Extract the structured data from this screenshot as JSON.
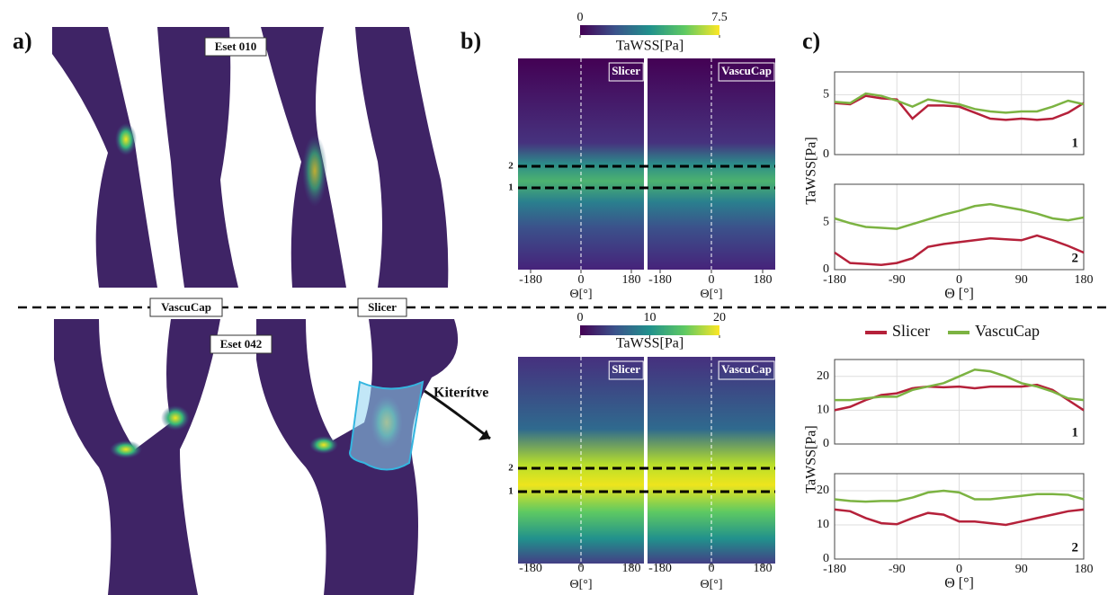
{
  "labels": {
    "a": "a)",
    "b": "b)",
    "c": "c)"
  },
  "renders": {
    "case_top": "Eset 010",
    "case_bottom": "Eset 042",
    "left": "VascuCap",
    "right": "Slicer",
    "arrow": "Kiterítve"
  },
  "heatmaps": [
    {
      "colorbar_label": "TaWSS[Pa]",
      "clim": [
        0,
        7.5
      ],
      "cticks": [
        0,
        7.5
      ],
      "panels": [
        "Slicer",
        "VascuCap"
      ],
      "xlim": [
        -180,
        180
      ],
      "xticks": [
        -180,
        0,
        180
      ],
      "xlabel": "Θ[°]",
      "lines": [
        "2",
        "1"
      ]
    },
    {
      "colorbar_label": "TaWSS[Pa]",
      "clim": [
        0,
        20
      ],
      "cticks": [
        0,
        10,
        20
      ],
      "panels": [
        "Slicer",
        "VascuCap"
      ],
      "xlim": [
        -180,
        180
      ],
      "xticks": [
        -180,
        0,
        180
      ],
      "xlabel": "Θ[°]",
      "lines": [
        "2",
        "1"
      ]
    }
  ],
  "chart_data": [
    {
      "type": "line",
      "ylabel": "TaWSS[Pa]",
      "annotation": "1",
      "x": [
        -180,
        -157.5,
        -135,
        -112.5,
        -90,
        -67.5,
        -45,
        -22.5,
        0,
        22.5,
        45,
        67.5,
        90,
        112.5,
        135,
        157.5,
        180
      ],
      "xlim": [
        -180,
        180
      ],
      "xticks": [
        -180,
        -90,
        0,
        90,
        180
      ],
      "ylim": [
        0,
        6.9
      ],
      "yticks": [
        0,
        5
      ],
      "grid": true,
      "series": [
        {
          "name": "Slicer",
          "color": "#b5213a",
          "values": [
            4.3,
            4.2,
            4.9,
            4.7,
            4.6,
            3.0,
            4.1,
            4.1,
            4.0,
            3.5,
            3.0,
            2.9,
            3.0,
            2.9,
            3.0,
            3.5,
            4.3
          ]
        },
        {
          "name": "VascuCap",
          "color": "#7cb342",
          "values": [
            4.4,
            4.3,
            5.1,
            4.9,
            4.5,
            4.0,
            4.6,
            4.4,
            4.2,
            3.8,
            3.6,
            3.5,
            3.6,
            3.6,
            4.0,
            4.5,
            4.2
          ]
        }
      ]
    },
    {
      "type": "line",
      "annotation": "2",
      "xlabel": "Θ [°]",
      "x": [
        -180,
        -157.5,
        -135,
        -112.5,
        -90,
        -67.5,
        -45,
        -22.5,
        0,
        22.5,
        45,
        67.5,
        90,
        112.5,
        135,
        157.5,
        180
      ],
      "xlim": [
        -180,
        180
      ],
      "xticks": [
        -180,
        -90,
        0,
        90,
        180
      ],
      "ylim": [
        0,
        9
      ],
      "yticks": [
        0,
        5
      ],
      "grid": true,
      "series": [
        {
          "name": "Slicer",
          "color": "#b5213a",
          "values": [
            1.8,
            0.7,
            0.6,
            0.5,
            0.7,
            1.2,
            2.4,
            2.7,
            2.9,
            3.1,
            3.3,
            3.2,
            3.1,
            3.6,
            3.1,
            2.5,
            1.8
          ]
        },
        {
          "name": "VascuCap",
          "color": "#7cb342",
          "values": [
            5.4,
            4.9,
            4.5,
            4.4,
            4.3,
            4.8,
            5.3,
            5.8,
            6.2,
            6.7,
            6.9,
            6.6,
            6.3,
            5.9,
            5.4,
            5.2,
            5.5
          ]
        }
      ]
    },
    {
      "type": "line",
      "ylabel": "TaWSS[Pa]",
      "annotation": "1",
      "x": [
        -180,
        -157.5,
        -135,
        -112.5,
        -90,
        -67.5,
        -45,
        -22.5,
        0,
        22.5,
        45,
        67.5,
        90,
        112.5,
        135,
        157.5,
        180
      ],
      "xlim": [
        -180,
        180
      ],
      "xticks": [
        -180,
        -90,
        0,
        90,
        180
      ],
      "ylim": [
        0,
        25
      ],
      "yticks": [
        0,
        10,
        20
      ],
      "grid": true,
      "series": [
        {
          "name": "Slicer",
          "color": "#b5213a",
          "values": [
            10,
            11,
            13,
            14.5,
            15,
            16.5,
            17,
            16.8,
            17,
            16.5,
            17,
            17,
            17,
            17.5,
            16,
            13,
            10
          ]
        },
        {
          "name": "VascuCap",
          "color": "#7cb342",
          "values": [
            13,
            13,
            13.5,
            14,
            14,
            16,
            17,
            18,
            20,
            22,
            21.5,
            20,
            18,
            17,
            15.5,
            13.5,
            13
          ]
        }
      ]
    },
    {
      "type": "line",
      "annotation": "2",
      "xlabel": "Θ [°]",
      "x": [
        -180,
        -157.5,
        -135,
        -112.5,
        -90,
        -67.5,
        -45,
        -22.5,
        0,
        22.5,
        45,
        67.5,
        90,
        112.5,
        135,
        157.5,
        180
      ],
      "xlim": [
        -180,
        180
      ],
      "xticks": [
        -180,
        -90,
        0,
        90,
        180
      ],
      "ylim": [
        0,
        25
      ],
      "yticks": [
        0,
        10,
        20
      ],
      "grid": true,
      "series": [
        {
          "name": "Slicer",
          "color": "#b5213a",
          "values": [
            14.5,
            14,
            12,
            10.5,
            10.2,
            12,
            13.5,
            13,
            11,
            11,
            10.5,
            10,
            11,
            12,
            13,
            14,
            14.5
          ]
        },
        {
          "name": "VascuCap",
          "color": "#7cb342",
          "values": [
            17.5,
            17,
            16.8,
            17,
            17,
            18,
            19.5,
            20,
            19.5,
            17.5,
            17.5,
            18,
            18.5,
            19,
            19,
            18.8,
            17.5
          ]
        }
      ]
    }
  ]
}
